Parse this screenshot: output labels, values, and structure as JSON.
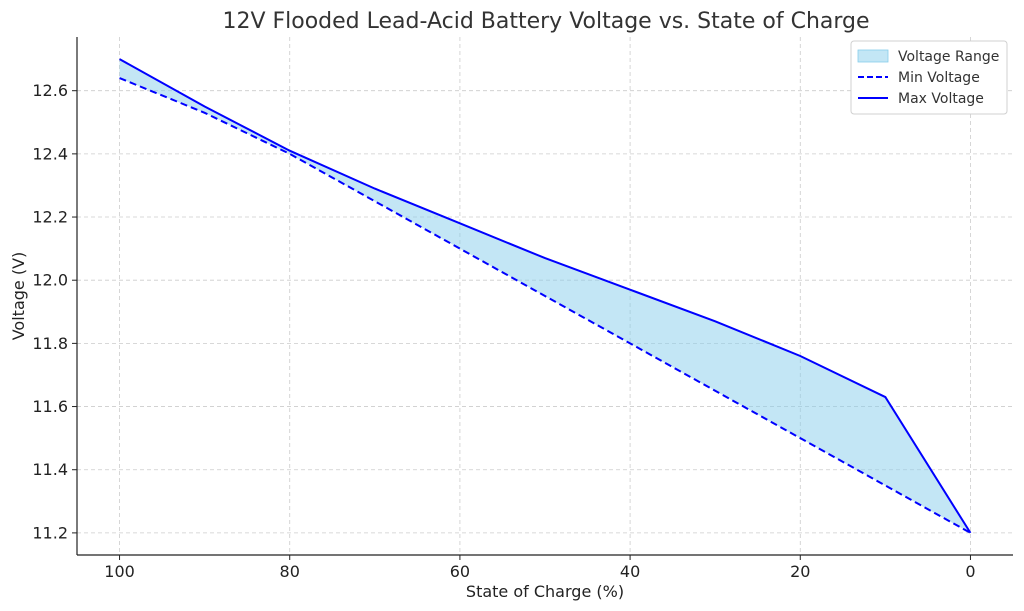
{
  "chart_data": {
    "type": "area",
    "title": "12V Flooded Lead-Acid Battery Voltage vs. State of Charge",
    "xlabel": "State of Charge (%)",
    "ylabel": "Voltage (V)",
    "x": [
      100,
      90,
      80,
      70,
      60,
      50,
      40,
      30,
      20,
      10,
      0
    ],
    "x_reversed": true,
    "xlim": [
      105,
      -5
    ],
    "ylim": [
      11.13,
      12.77
    ],
    "xticks": [
      "100",
      "80",
      "60",
      "40",
      "20",
      "0"
    ],
    "yticks": [
      "11.2",
      "11.4",
      "11.6",
      "11.8",
      "12.0",
      "12.2",
      "12.4",
      "12.6"
    ],
    "grid": true,
    "legend_position": "top-right",
    "series": [
      {
        "name": "Voltage Range",
        "kind": "fill_between",
        "color": "#87CEEB"
      },
      {
        "name": "Min Voltage",
        "kind": "line",
        "style": "dashed",
        "color": "#0000FF",
        "values": [
          12.64,
          12.53,
          12.4,
          12.25,
          12.1,
          11.95,
          11.8,
          11.65,
          11.5,
          11.35,
          11.2
        ]
      },
      {
        "name": "Max Voltage",
        "kind": "line",
        "style": "solid",
        "color": "#0000FF",
        "values": [
          12.7,
          12.55,
          12.41,
          12.29,
          12.18,
          12.07,
          11.97,
          11.87,
          11.76,
          11.63,
          11.2
        ]
      }
    ]
  }
}
